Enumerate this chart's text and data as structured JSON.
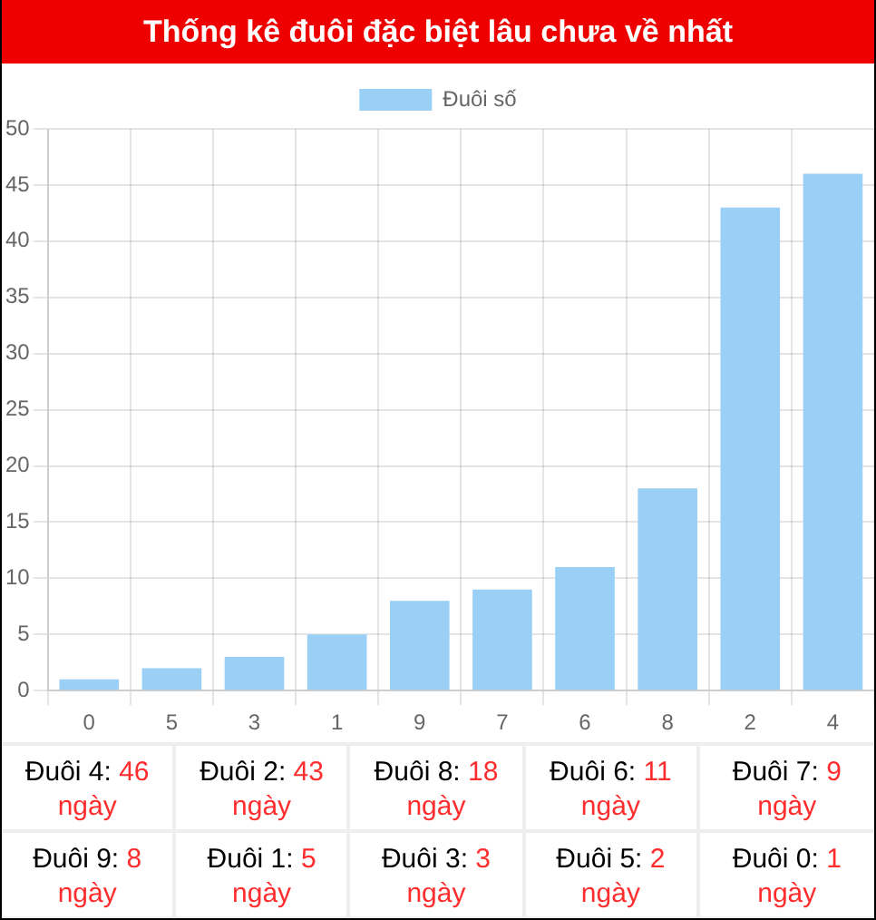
{
  "chart_data": {
    "type": "bar",
    "title": "Thống kê đuôi đặc biệt lâu chưa về nhất",
    "categories": [
      "0",
      "5",
      "3",
      "1",
      "9",
      "7",
      "6",
      "8",
      "2",
      "4"
    ],
    "series": [
      {
        "name": "Đuôi số",
        "color": "#9ad0f5",
        "values": [
          1,
          2,
          3,
          5,
          8,
          9,
          11,
          18,
          43,
          46
        ]
      }
    ],
    "ylim": [
      0,
      50
    ],
    "yticks": [
      0,
      5,
      10,
      15,
      20,
      25,
      30,
      35,
      40,
      45,
      50
    ],
    "grid": true,
    "legend": "top",
    "annotations": [
      "Đuôi 4: 46 ngày",
      "Đuôi 2: 43 ngày",
      "Đuôi 8: 18 ngày",
      "Đuôi 6: 11 ngày",
      "Đuôi 7: 9 ngày",
      "Đuôi 9: 8 ngày",
      "Đuôi 1: 5 ngày",
      "Đuôi 3: 3 ngày",
      "Đuôi 5: 2 ngày",
      "Đuôi 0: 1 ngày"
    ]
  }
}
